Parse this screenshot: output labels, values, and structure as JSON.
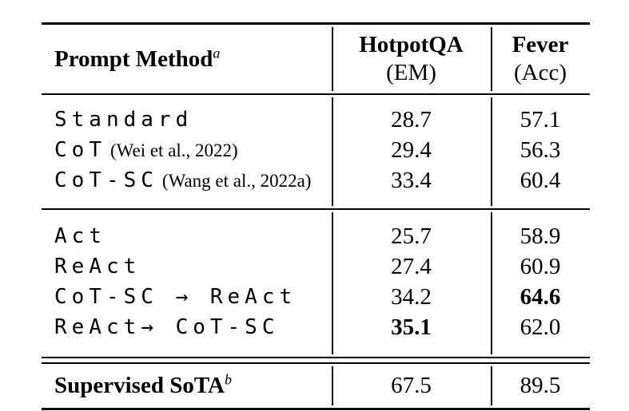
{
  "page": {
    "background_color": "#ffffff",
    "text_color": "#000000"
  },
  "table": {
    "header": {
      "method_label": "Prompt Method",
      "method_sup": "a",
      "col2_line1": "HotpotQA",
      "col2_line2": "(EM)",
      "col3_line1": "Fever",
      "col3_line2": "(Acc)"
    },
    "group1": [
      {
        "method": "Standard",
        "citation": "",
        "em": "28.7",
        "acc": "57.1",
        "em_bold": false,
        "acc_bold": false
      },
      {
        "method": "CoT",
        "citation": "(Wei et al., 2022)",
        "em": "29.4",
        "acc": "56.3",
        "em_bold": false,
        "acc_bold": false
      },
      {
        "method": "CoT-SC",
        "citation": "(Wang et al., 2022a)",
        "em": "33.4",
        "acc": "60.4",
        "em_bold": false,
        "acc_bold": false
      }
    ],
    "group2": [
      {
        "method": "Act",
        "citation": "",
        "em": "25.7",
        "acc": "58.9",
        "em_bold": false,
        "acc_bold": false
      },
      {
        "method": "ReAct",
        "citation": "",
        "em": "27.4",
        "acc": "60.9",
        "em_bold": false,
        "acc_bold": false
      },
      {
        "method": "CoT-SC → ReAct",
        "citation": "",
        "em": "34.2",
        "acc": "64.6",
        "em_bold": false,
        "acc_bold": true
      },
      {
        "method": "ReAct→ CoT-SC",
        "citation": "",
        "em": "35.1",
        "acc": "62.0",
        "em_bold": true,
        "acc_bold": false
      }
    ],
    "footer": {
      "method_label": "Supervised SoTA",
      "method_sup": "b",
      "em": "67.5",
      "acc": "89.5"
    }
  }
}
